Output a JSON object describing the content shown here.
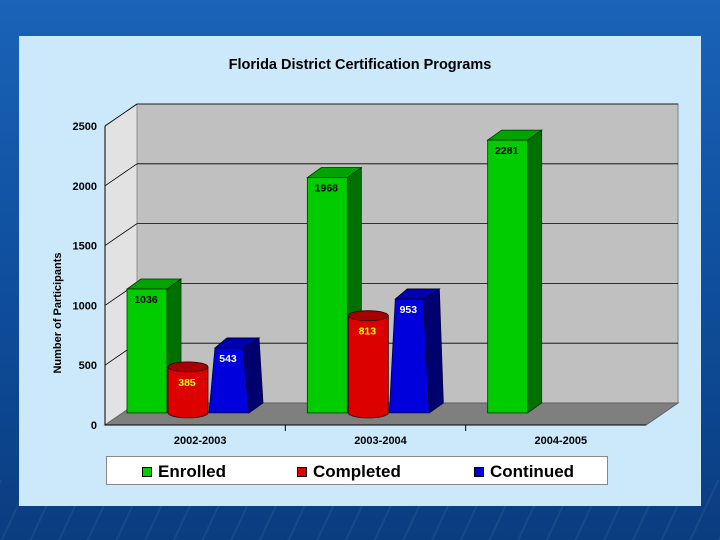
{
  "chart_data": {
    "type": "bar",
    "title": "Florida District Certification Programs",
    "ylabel": "Number of Participants",
    "xlabel": "",
    "ylim": [
      0,
      2500
    ],
    "yticks": [
      0,
      500,
      1000,
      1500,
      2000,
      2500
    ],
    "categories": [
      "2002-2003",
      "2003-2004",
      "2004-2005"
    ],
    "grid": true,
    "legend": "bottom",
    "series": [
      {
        "name": "Enrolled",
        "color": "#00cc00",
        "values": [
          1036,
          1968,
          2281
        ],
        "labels": [
          "1036",
          "1968",
          "2281"
        ],
        "shape": "box"
      },
      {
        "name": "Completed",
        "color": "#dd0000",
        "values": [
          385,
          813,
          null
        ],
        "labels": [
          "385",
          "813",
          ""
        ],
        "shape": "cylinder"
      },
      {
        "name": "Continued",
        "color": "#0000dd",
        "values": [
          543,
          953,
          null
        ],
        "labels": [
          "543",
          "953",
          ""
        ],
        "shape": "pyramid"
      }
    ]
  }
}
